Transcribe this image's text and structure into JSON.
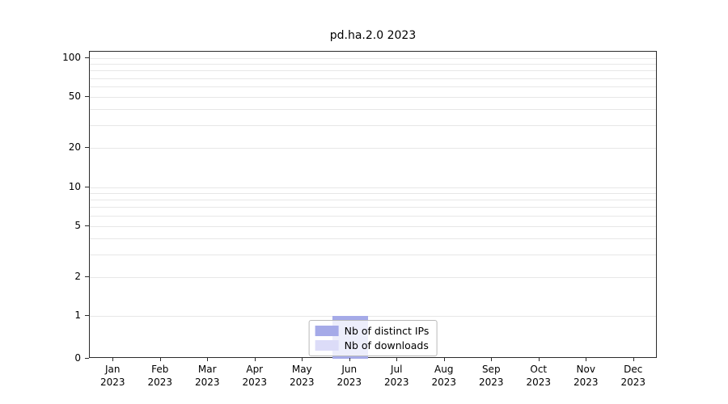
{
  "chart_data": {
    "type": "bar",
    "title": "pd.ha.2.0 2023",
    "categories": [
      "Jan",
      "Feb",
      "Mar",
      "Apr",
      "May",
      "Jun",
      "Jul",
      "Aug",
      "Sep",
      "Oct",
      "Nov",
      "Dec"
    ],
    "category_year": "2023",
    "series": [
      {
        "name": "Nb of distinct IPs",
        "color": "#a5aae8",
        "values": [
          0,
          0,
          0,
          0,
          0,
          1,
          0,
          0,
          0,
          0,
          0,
          0
        ]
      },
      {
        "name": "Nb of downloads",
        "color": "#dcdcf8",
        "values": [
          0,
          0,
          0,
          0,
          0,
          1,
          0,
          0,
          0,
          0,
          0,
          0
        ]
      }
    ],
    "y_ticks": [
      "0",
      "1",
      "2",
      "5",
      "10",
      "20",
      "50",
      "100"
    ],
    "y_tick_values": [
      0,
      1,
      2,
      5,
      10,
      20,
      50,
      100
    ],
    "ylim": [
      0,
      112
    ],
    "scale": "symlog",
    "grid": true,
    "legend_position": "bottom-center"
  }
}
